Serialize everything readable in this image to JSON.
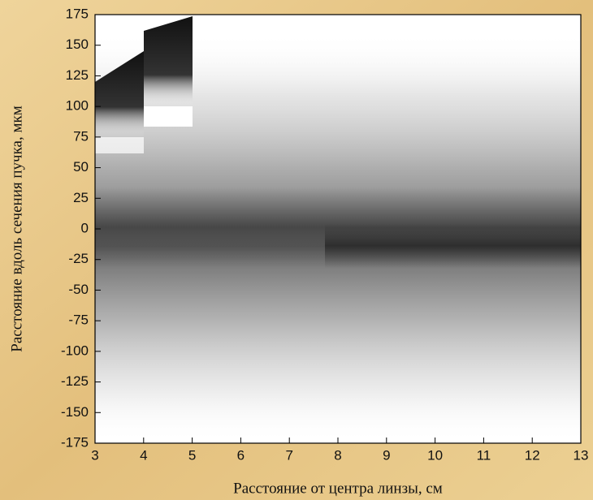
{
  "chart_data": {
    "type": "image",
    "xlabel": "Расстояние от центра линзы, см",
    "ylabel": "Расстояние вдоль сечения пучка, мкм",
    "xlim": [
      3,
      13
    ],
    "xticks": [
      3,
      4,
      5,
      6,
      7,
      8,
      9,
      10,
      11,
      12,
      13
    ],
    "ylim": [
      -175,
      175
    ],
    "yticks": [
      -175,
      -150,
      -125,
      -100,
      -75,
      -50,
      -25,
      0,
      25,
      50,
      75,
      100,
      125,
      150,
      175
    ]
  }
}
